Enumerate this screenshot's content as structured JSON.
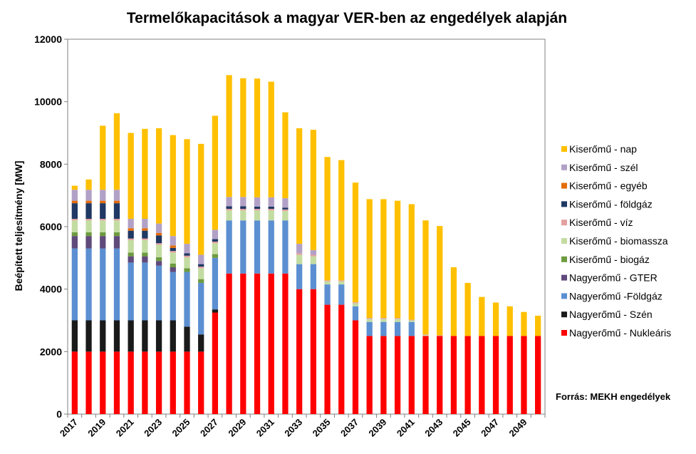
{
  "chart_data": {
    "type": "bar",
    "stacked": true,
    "title": "Termelőkapacitások a magyar VER-ben az engedélyek alapján",
    "ylabel": "Beépített teljesítmény [MW]",
    "xlabel": "",
    "ylim": [
      0,
      12000
    ],
    "yticks": [
      "0",
      "2000",
      "4000",
      "6000",
      "8000",
      "10000",
      "12000"
    ],
    "grid": false,
    "legend_position": "right",
    "source": "Forrás: MEKH engedélyek",
    "categories": [
      "2017",
      "2018",
      "2019",
      "2020",
      "2021",
      "2022",
      "2023",
      "2024",
      "2025",
      "2026",
      "2027",
      "2028",
      "2029",
      "2030",
      "2031",
      "2032",
      "2033",
      "2034",
      "2035",
      "2036",
      "2037",
      "2038",
      "2039",
      "2040",
      "2041",
      "2042",
      "2043",
      "2044",
      "2045",
      "2046",
      "2047",
      "2048",
      "2049",
      "2050"
    ],
    "xtick_labels": [
      "2017",
      "",
      "2019",
      "",
      "2021",
      "",
      "2023",
      "",
      "2025",
      "",
      "2027",
      "",
      "2029",
      "",
      "2031",
      "",
      "2033",
      "",
      "2035",
      "",
      "2037",
      "",
      "2039",
      "",
      "2041",
      "",
      "2043",
      "",
      "2045",
      "",
      "2047",
      "",
      "2049",
      ""
    ],
    "series": [
      {
        "name": "Nagyerőmű - Nukleáris",
        "color": "#ff0000",
        "values": [
          2000,
          2000,
          2000,
          2000,
          2000,
          2000,
          2000,
          2000,
          2000,
          2000,
          3250,
          4500,
          4500,
          4500,
          4500,
          4500,
          4000,
          4000,
          3500,
          3500,
          3000,
          2500,
          2500,
          2500,
          2500,
          2500,
          2500,
          2500,
          2500,
          2500,
          2500,
          2500,
          2500,
          2500
        ]
      },
      {
        "name": "Nagyerőmű - Szén",
        "color": "#1a1a1a",
        "values": [
          1000,
          1000,
          1000,
          1000,
          1000,
          1000,
          1000,
          1000,
          800,
          550,
          100,
          0,
          0,
          0,
          0,
          0,
          0,
          0,
          0,
          0,
          0,
          0,
          0,
          0,
          0,
          0,
          0,
          0,
          0,
          0,
          0,
          0,
          0,
          0
        ]
      },
      {
        "name": "Nagyerőmű -Földgáz",
        "color": "#5b8fd1",
        "values": [
          2300,
          2300,
          2300,
          2300,
          1850,
          1850,
          1750,
          1550,
          1750,
          1650,
          1650,
          1700,
          1700,
          1700,
          1700,
          1700,
          800,
          800,
          650,
          650,
          450,
          450,
          450,
          450,
          450,
          0,
          0,
          0,
          0,
          0,
          0,
          0,
          0,
          0
        ]
      },
      {
        "name": "Nagyerőmű - GTER",
        "color": "#604a7b",
        "values": [
          400,
          400,
          400,
          400,
          200,
          200,
          150,
          150,
          0,
          0,
          0,
          0,
          0,
          0,
          0,
          0,
          0,
          0,
          0,
          0,
          0,
          0,
          0,
          0,
          0,
          0,
          0,
          0,
          0,
          0,
          0,
          0,
          0,
          0
        ]
      },
      {
        "name": "Kiserőmű - biogáz",
        "color": "#6d9b3f",
        "values": [
          120,
          120,
          120,
          120,
          120,
          120,
          120,
          120,
          120,
          120,
          120,
          0,
          0,
          0,
          0,
          0,
          0,
          0,
          0,
          0,
          0,
          0,
          0,
          0,
          0,
          0,
          0,
          0,
          0,
          0,
          0,
          0,
          0,
          0
        ]
      },
      {
        "name": "Kiserőmű - biomassza",
        "color": "#c3dca2",
        "values": [
          380,
          380,
          380,
          380,
          400,
          400,
          400,
          350,
          350,
          350,
          350,
          320,
          320,
          320,
          320,
          300,
          300,
          250,
          100,
          100,
          100,
          100,
          100,
          100,
          50,
          30,
          0,
          0,
          0,
          0,
          0,
          0,
          0,
          0
        ]
      },
      {
        "name": "Kiserőmű - víz",
        "color": "#e4a0a0",
        "values": [
          50,
          50,
          50,
          50,
          50,
          50,
          50,
          50,
          50,
          50,
          50,
          50,
          50,
          50,
          50,
          50,
          50,
          50,
          30,
          30,
          30,
          30,
          30,
          30,
          20,
          20,
          20,
          0,
          0,
          0,
          0,
          0,
          0,
          0
        ]
      },
      {
        "name": "Kiserőmű - földgáz",
        "color": "#1f3864",
        "values": [
          500,
          500,
          500,
          500,
          250,
          250,
          250,
          100,
          80,
          80,
          80,
          80,
          80,
          70,
          70,
          60,
          0,
          0,
          0,
          0,
          0,
          0,
          0,
          0,
          0,
          0,
          0,
          0,
          0,
          0,
          0,
          0,
          0,
          0
        ]
      },
      {
        "name": "Kiserőmű - egyéb",
        "color": "#e46c0a",
        "values": [
          80,
          80,
          80,
          80,
          80,
          80,
          80,
          80,
          0,
          0,
          0,
          0,
          0,
          0,
          0,
          0,
          0,
          0,
          0,
          0,
          0,
          0,
          0,
          0,
          0,
          0,
          0,
          0,
          0,
          0,
          0,
          0,
          0,
          0
        ]
      },
      {
        "name": "Kiserőmű - szél",
        "color": "#b2a1c7",
        "values": [
          350,
          350,
          350,
          350,
          300,
          300,
          300,
          300,
          300,
          300,
          300,
          300,
          300,
          300,
          300,
          300,
          300,
          150,
          0,
          0,
          0,
          0,
          0,
          0,
          0,
          0,
          0,
          0,
          0,
          0,
          0,
          0,
          0,
          0
        ]
      },
      {
        "name": "Kiserőmű - nap",
        "color": "#ffc000",
        "values": [
          130,
          330,
          2050,
          2450,
          2750,
          2880,
          3050,
          3230,
          3350,
          3550,
          3650,
          3900,
          3800,
          3800,
          3700,
          2750,
          3700,
          3850,
          3950,
          3850,
          3830,
          3800,
          3800,
          3750,
          3700,
          3650,
          3500,
          2200,
          1700,
          1250,
          1070,
          950,
          770,
          650
        ]
      }
    ]
  }
}
